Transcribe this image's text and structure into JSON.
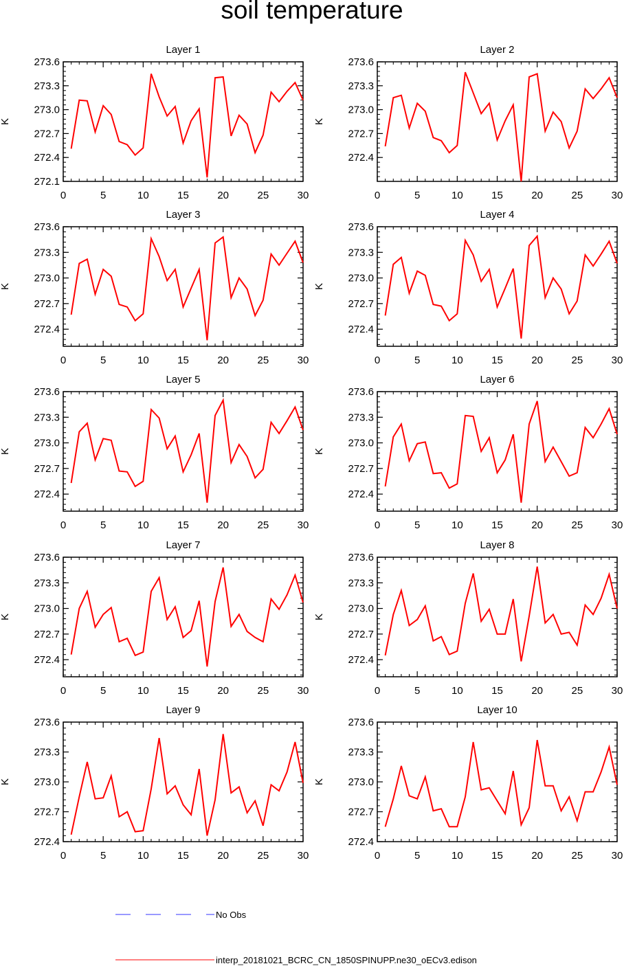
{
  "title": "soil temperature",
  "legend": {
    "obs_label": "No Obs",
    "model_label": "interp_20181021_BCRC_CN_1850SPINUPP.ne30_oECv3.edison",
    "obs_color": "#3333ff",
    "model_color": "#ff0000"
  },
  "chart_data": [
    {
      "type": "line",
      "title": "Layer 1",
      "ylabel": "K",
      "ylim": [
        272.1,
        273.6
      ],
      "yticks": [
        "273.6",
        "273.3",
        "273.0",
        "272.7",
        "272.4",
        "272.1"
      ],
      "xlim": [
        0,
        30
      ],
      "xticks": [
        "0",
        "5",
        "10",
        "15",
        "20",
        "25",
        "30"
      ],
      "x": [
        1,
        2,
        3,
        4,
        5,
        6,
        7,
        8,
        9,
        10,
        11,
        12,
        13,
        14,
        15,
        16,
        17,
        18,
        19,
        20,
        21,
        22,
        23,
        24,
        25,
        26,
        27,
        28,
        29,
        30
      ],
      "series": [
        {
          "color": "#ff0000",
          "values": [
            272.51,
            273.12,
            273.11,
            272.72,
            273.05,
            272.94,
            272.6,
            272.56,
            272.43,
            272.52,
            273.45,
            273.16,
            272.92,
            273.04,
            272.58,
            272.86,
            273.01,
            272.15,
            273.4,
            273.41,
            272.67,
            272.93,
            272.82,
            272.46,
            272.68,
            273.22,
            273.1,
            273.23,
            273.34,
            273.12
          ]
        }
      ]
    },
    {
      "type": "line",
      "title": "Layer 2",
      "ylabel": "K",
      "ylim": [
        272.1,
        273.6
      ],
      "yticks": [
        "273.6",
        "273.3",
        "273.0",
        "272.7",
        "272.4"
      ],
      "xlim": [
        0,
        30
      ],
      "xticks": [
        "0",
        "5",
        "10",
        "15",
        "20",
        "25",
        "30"
      ],
      "x": [
        1,
        2,
        3,
        4,
        5,
        6,
        7,
        8,
        9,
        10,
        11,
        12,
        13,
        14,
        15,
        16,
        17,
        18,
        19,
        20,
        21,
        22,
        23,
        24,
        25,
        26,
        27,
        28,
        29,
        30
      ],
      "series": [
        {
          "color": "#ff0000",
          "values": [
            272.54,
            273.15,
            273.18,
            272.77,
            273.08,
            272.98,
            272.65,
            272.61,
            272.46,
            272.55,
            273.47,
            273.21,
            272.95,
            273.08,
            272.62,
            272.86,
            273.06,
            272.1,
            273.41,
            273.45,
            272.73,
            272.97,
            272.85,
            272.52,
            272.73,
            273.26,
            273.14,
            273.26,
            273.4,
            273.15
          ]
        }
      ]
    },
    {
      "type": "line",
      "title": "Layer 3",
      "ylabel": "K",
      "ylim": [
        272.2,
        273.6
      ],
      "yticks": [
        "273.6",
        "273.3",
        "273.0",
        "272.7",
        "272.4"
      ],
      "xlim": [
        0,
        30
      ],
      "xticks": [
        "0",
        "5",
        "10",
        "15",
        "20",
        "25",
        "30"
      ],
      "x": [
        1,
        2,
        3,
        4,
        5,
        6,
        7,
        8,
        9,
        10,
        11,
        12,
        13,
        14,
        15,
        16,
        17,
        18,
        19,
        20,
        21,
        22,
        23,
        24,
        25,
        26,
        27,
        28,
        29,
        30
      ],
      "series": [
        {
          "color": "#ff0000",
          "values": [
            272.57,
            273.17,
            273.22,
            272.81,
            273.1,
            273.02,
            272.69,
            272.66,
            272.5,
            272.58,
            273.46,
            273.25,
            272.97,
            273.1,
            272.66,
            272.88,
            273.1,
            272.27,
            273.41,
            273.48,
            272.77,
            273.0,
            272.87,
            272.56,
            272.74,
            273.28,
            273.15,
            273.29,
            273.43,
            273.18
          ]
        }
      ]
    },
    {
      "type": "line",
      "title": "Layer 4",
      "ylabel": "K",
      "ylim": [
        272.2,
        273.6
      ],
      "yticks": [
        "273.6",
        "273.3",
        "273.0",
        "272.7",
        "272.4"
      ],
      "xlim": [
        0,
        30
      ],
      "xticks": [
        "0",
        "5",
        "10",
        "15",
        "20",
        "25",
        "30"
      ],
      "x": [
        1,
        2,
        3,
        4,
        5,
        6,
        7,
        8,
        9,
        10,
        11,
        12,
        13,
        14,
        15,
        16,
        17,
        18,
        19,
        20,
        21,
        22,
        23,
        24,
        25,
        26,
        27,
        28,
        29,
        30
      ],
      "series": [
        {
          "color": "#ff0000",
          "values": [
            272.56,
            273.16,
            273.24,
            272.82,
            273.08,
            273.03,
            272.69,
            272.67,
            272.5,
            272.58,
            273.44,
            273.27,
            272.96,
            273.1,
            272.66,
            272.88,
            273.11,
            272.29,
            273.38,
            273.49,
            272.77,
            273.0,
            272.87,
            272.58,
            272.73,
            273.27,
            273.14,
            273.28,
            273.43,
            273.17
          ]
        }
      ]
    },
    {
      "type": "line",
      "title": "Layer 5",
      "ylabel": "K",
      "ylim": [
        272.2,
        273.6
      ],
      "yticks": [
        "273.6",
        "273.3",
        "273.0",
        "272.7",
        "272.4"
      ],
      "xlim": [
        0,
        30
      ],
      "xticks": [
        "0",
        "5",
        "10",
        "15",
        "20",
        "25",
        "30"
      ],
      "x": [
        1,
        2,
        3,
        4,
        5,
        6,
        7,
        8,
        9,
        10,
        11,
        12,
        13,
        14,
        15,
        16,
        17,
        18,
        19,
        20,
        21,
        22,
        23,
        24,
        25,
        26,
        27,
        28,
        29,
        30
      ],
      "series": [
        {
          "color": "#ff0000",
          "values": [
            272.53,
            273.13,
            273.23,
            272.8,
            273.05,
            273.03,
            272.67,
            272.66,
            272.49,
            272.55,
            273.39,
            273.29,
            272.93,
            273.08,
            272.66,
            272.86,
            273.11,
            272.3,
            273.32,
            273.5,
            272.77,
            272.98,
            272.84,
            272.59,
            272.69,
            273.24,
            273.11,
            273.26,
            273.42,
            273.15
          ]
        }
      ]
    },
    {
      "type": "line",
      "title": "Layer 6",
      "ylabel": "K",
      "ylim": [
        272.2,
        273.6
      ],
      "yticks": [
        "273.6",
        "273.3",
        "273.0",
        "272.7",
        "272.4"
      ],
      "xlim": [
        0,
        30
      ],
      "xticks": [
        "0",
        "5",
        "10",
        "15",
        "20",
        "25",
        "30"
      ],
      "x": [
        1,
        2,
        3,
        4,
        5,
        6,
        7,
        8,
        9,
        10,
        11,
        12,
        13,
        14,
        15,
        16,
        17,
        18,
        19,
        20,
        21,
        22,
        23,
        24,
        25,
        26,
        27,
        28,
        29,
        30
      ],
      "series": [
        {
          "color": "#ff0000",
          "values": [
            272.49,
            273.07,
            273.22,
            272.79,
            272.99,
            273.01,
            272.64,
            272.65,
            272.47,
            272.52,
            273.32,
            273.31,
            272.9,
            273.06,
            272.65,
            272.8,
            273.1,
            272.3,
            273.22,
            273.49,
            272.78,
            272.95,
            272.78,
            272.61,
            272.65,
            273.18,
            273.06,
            273.22,
            273.4,
            273.1
          ]
        }
      ]
    },
    {
      "type": "line",
      "title": "Layer 7",
      "ylabel": "K",
      "ylim": [
        272.2,
        273.6
      ],
      "yticks": [
        "273.6",
        "273.3",
        "273.0",
        "272.7",
        "272.4"
      ],
      "xlim": [
        0,
        30
      ],
      "xticks": [
        "0",
        "5",
        "10",
        "15",
        "20",
        "25",
        "30"
      ],
      "x": [
        1,
        2,
        3,
        4,
        5,
        6,
        7,
        8,
        9,
        10,
        11,
        12,
        13,
        14,
        15,
        16,
        17,
        18,
        19,
        20,
        21,
        22,
        23,
        24,
        25,
        26,
        27,
        28,
        29,
        30
      ],
      "series": [
        {
          "color": "#ff0000",
          "values": [
            272.46,
            273.0,
            273.2,
            272.78,
            272.93,
            273.01,
            272.61,
            272.65,
            272.45,
            272.49,
            273.2,
            273.36,
            272.87,
            273.02,
            272.66,
            272.74,
            273.09,
            272.32,
            273.08,
            273.48,
            272.79,
            272.93,
            272.73,
            272.66,
            272.61,
            273.11,
            272.99,
            273.16,
            273.39,
            273.07
          ]
        }
      ]
    },
    {
      "type": "line",
      "title": "Layer 8",
      "ylabel": "K",
      "ylim": [
        272.2,
        273.6
      ],
      "yticks": [
        "273.6",
        "273.3",
        "273.0",
        "272.7",
        "272.4"
      ],
      "xlim": [
        0,
        30
      ],
      "xticks": [
        "0",
        "5",
        "10",
        "15",
        "20",
        "25",
        "30"
      ],
      "x": [
        1,
        2,
        3,
        4,
        5,
        6,
        7,
        8,
        9,
        10,
        11,
        12,
        13,
        14,
        15,
        16,
        17,
        18,
        19,
        20,
        21,
        22,
        23,
        24,
        25,
        26,
        27,
        28,
        29,
        30
      ],
      "series": [
        {
          "color": "#ff0000",
          "values": [
            272.45,
            272.93,
            273.21,
            272.8,
            272.87,
            273.03,
            272.62,
            272.67,
            272.46,
            272.5,
            273.06,
            273.41,
            272.85,
            272.99,
            272.7,
            272.7,
            273.11,
            272.38,
            272.91,
            273.49,
            272.83,
            272.93,
            272.7,
            272.72,
            272.57,
            273.04,
            272.93,
            273.12,
            273.4,
            273.0
          ]
        }
      ]
    },
    {
      "type": "line",
      "title": "Layer 9",
      "ylabel": "K",
      "ylim": [
        272.4,
        273.6
      ],
      "yticks": [
        "273.6",
        "273.3",
        "273.0",
        "272.7",
        "272.4"
      ],
      "xlim": [
        0,
        30
      ],
      "xticks": [
        "0",
        "5",
        "10",
        "15",
        "20",
        "25",
        "30"
      ],
      "x": [
        1,
        2,
        3,
        4,
        5,
        6,
        7,
        8,
        9,
        10,
        11,
        12,
        13,
        14,
        15,
        16,
        17,
        18,
        19,
        20,
        21,
        22,
        23,
        24,
        25,
        26,
        27,
        28,
        29,
        30
      ],
      "series": [
        {
          "color": "#ff0000",
          "values": [
            272.47,
            272.85,
            273.2,
            272.83,
            272.84,
            273.06,
            272.65,
            272.7,
            272.5,
            272.51,
            272.93,
            273.44,
            272.88,
            272.96,
            272.77,
            272.67,
            273.13,
            272.46,
            272.82,
            273.48,
            272.89,
            272.95,
            272.69,
            272.81,
            272.56,
            272.97,
            272.91,
            273.1,
            273.4,
            272.99
          ]
        }
      ]
    },
    {
      "type": "line",
      "title": "Layer 10",
      "ylabel": "K",
      "ylim": [
        272.4,
        273.6
      ],
      "yticks": [
        "273.6",
        "273.3",
        "273.0",
        "272.7",
        "272.4"
      ],
      "xlim": [
        0,
        30
      ],
      "xticks": [
        "0",
        "5",
        "10",
        "15",
        "20",
        "25",
        "30"
      ],
      "x": [
        1,
        2,
        3,
        4,
        5,
        6,
        7,
        8,
        9,
        10,
        11,
        12,
        13,
        14,
        15,
        16,
        17,
        18,
        19,
        20,
        21,
        22,
        23,
        24,
        25,
        26,
        27,
        28,
        29,
        30
      ],
      "series": [
        {
          "color": "#ff0000",
          "values": [
            272.55,
            272.83,
            273.16,
            272.86,
            272.83,
            273.05,
            272.71,
            272.73,
            272.55,
            272.55,
            272.85,
            273.4,
            272.92,
            272.94,
            272.81,
            272.68,
            273.11,
            272.57,
            272.74,
            273.42,
            272.96,
            272.96,
            272.71,
            272.85,
            272.61,
            272.9,
            272.9,
            273.1,
            273.35,
            272.97
          ]
        }
      ]
    }
  ]
}
